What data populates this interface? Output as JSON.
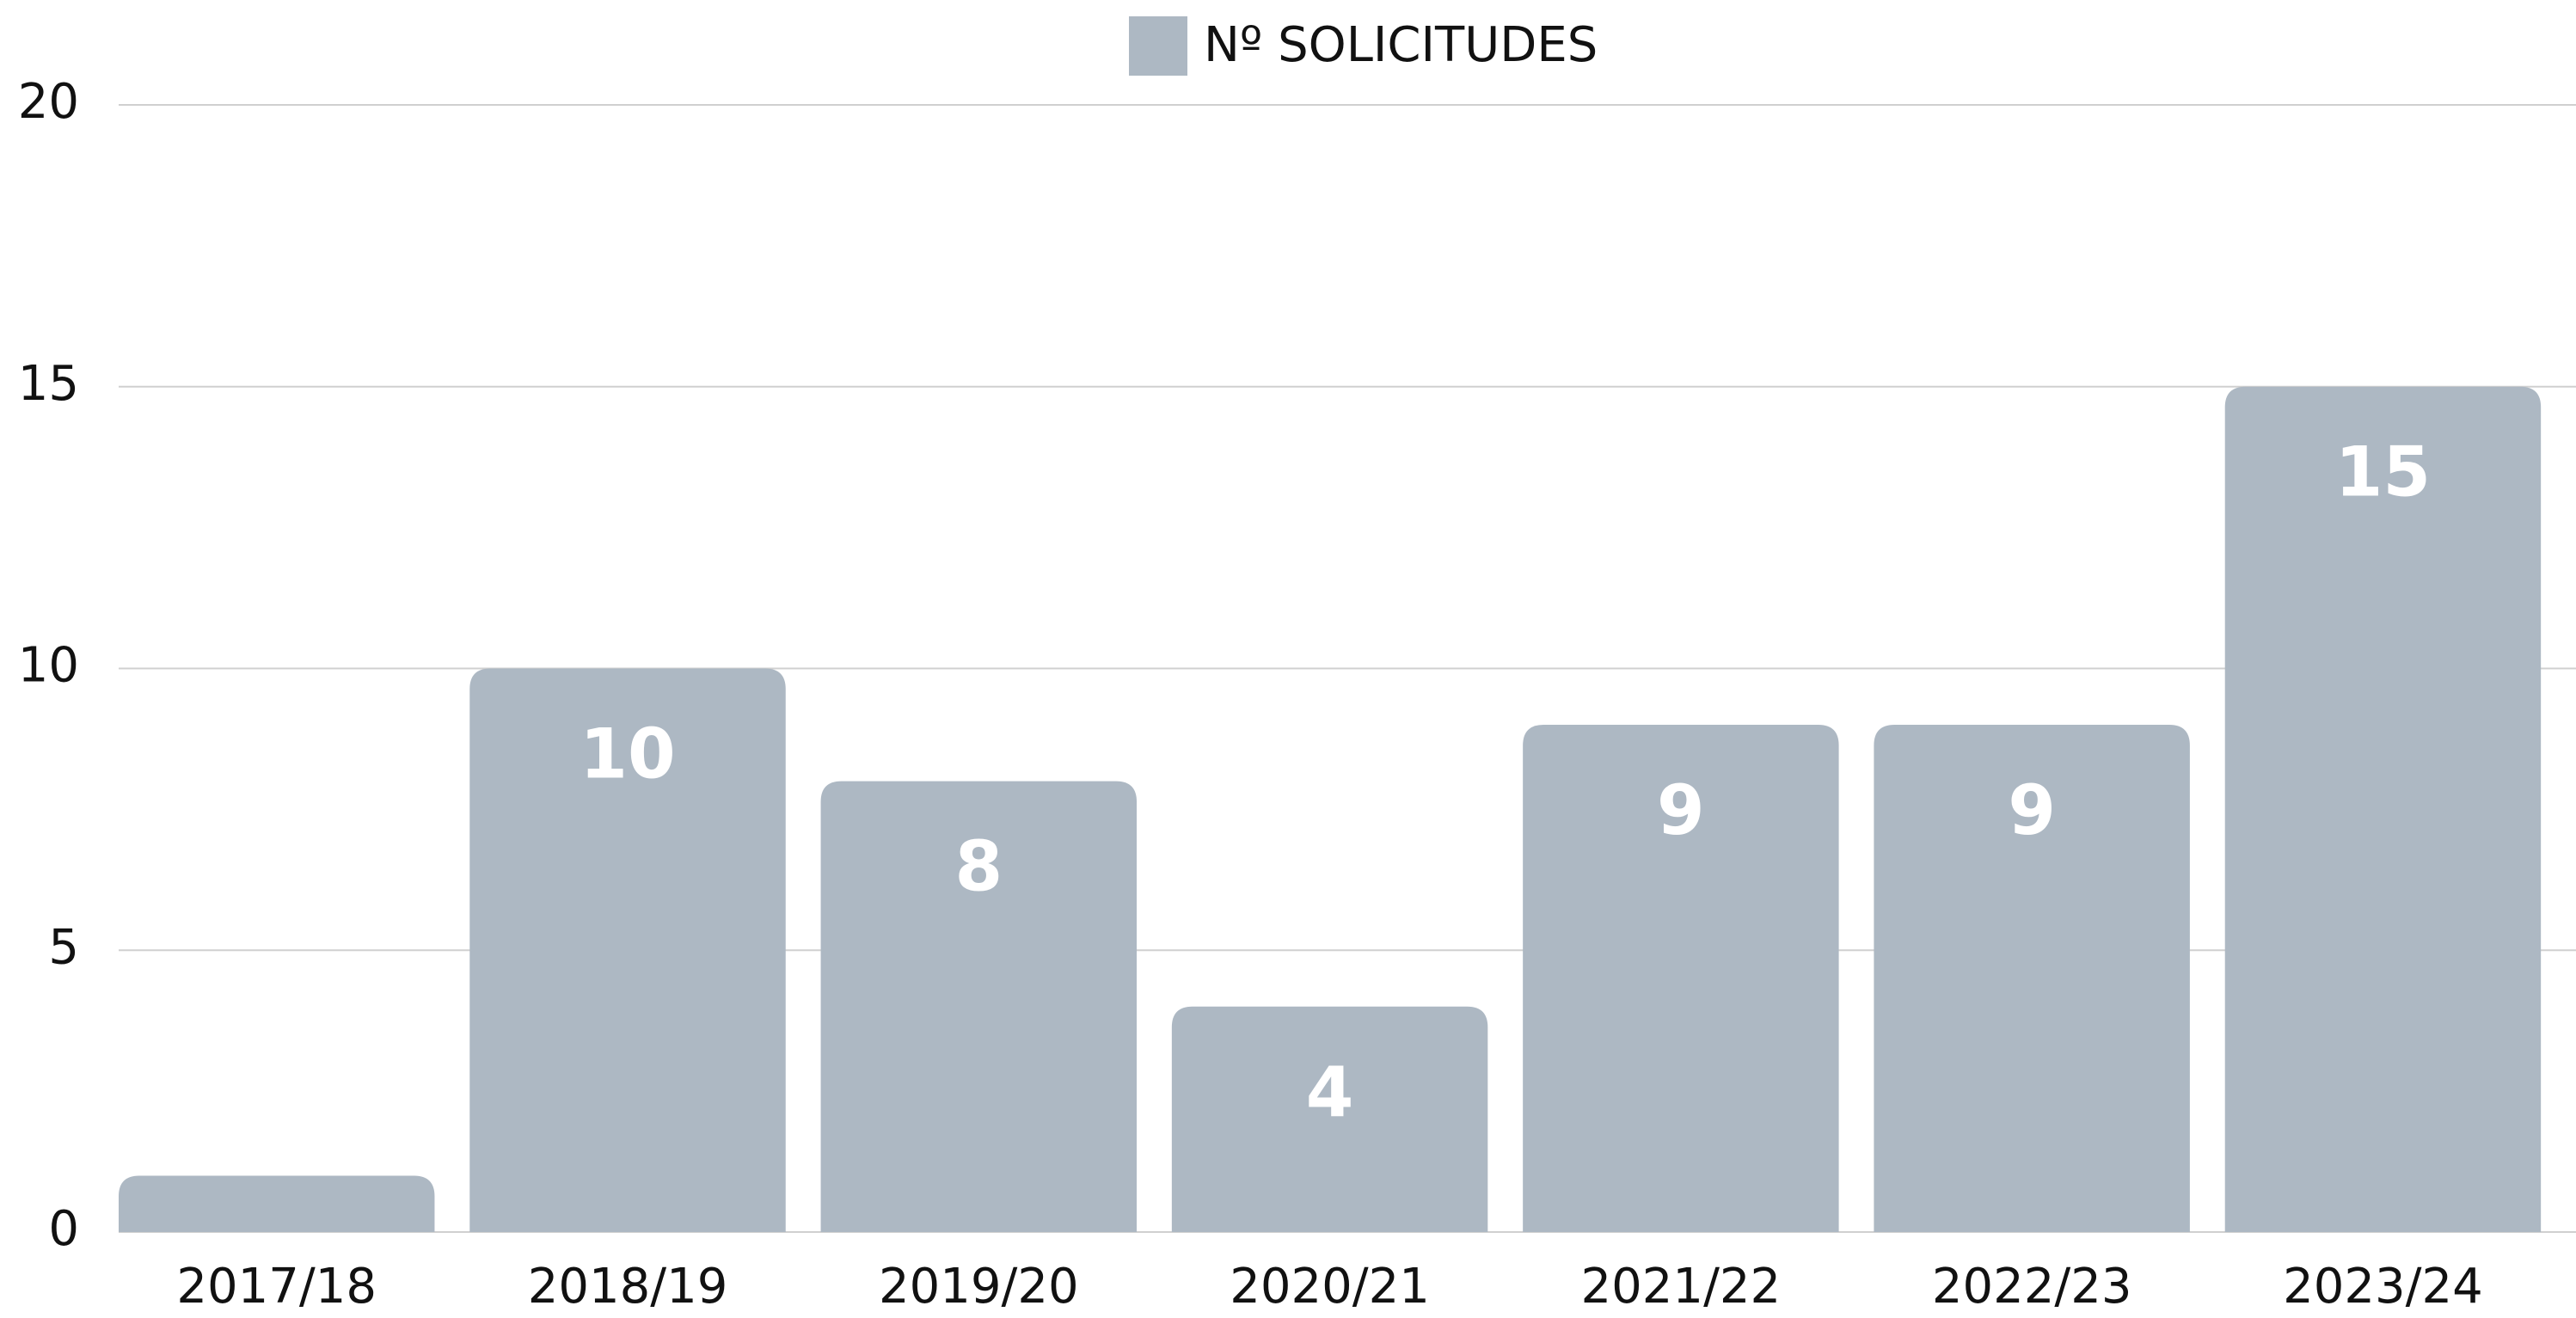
{
  "chart_data": {
    "type": "bar",
    "legend_position": "top",
    "series": [
      {
        "name": "Nº SOLICITUDES",
        "color": "#adb8c3",
        "values": [
          1,
          10,
          8,
          4,
          9,
          9,
          15
        ]
      }
    ],
    "categories": [
      "2017/18",
      "2018/19",
      "2019/20",
      "2020/21",
      "2021/22",
      "2022/23",
      "2023/24"
    ],
    "ylim": [
      0,
      20
    ],
    "yticks": [
      0,
      5,
      10,
      15,
      20
    ],
    "grid": true
  }
}
